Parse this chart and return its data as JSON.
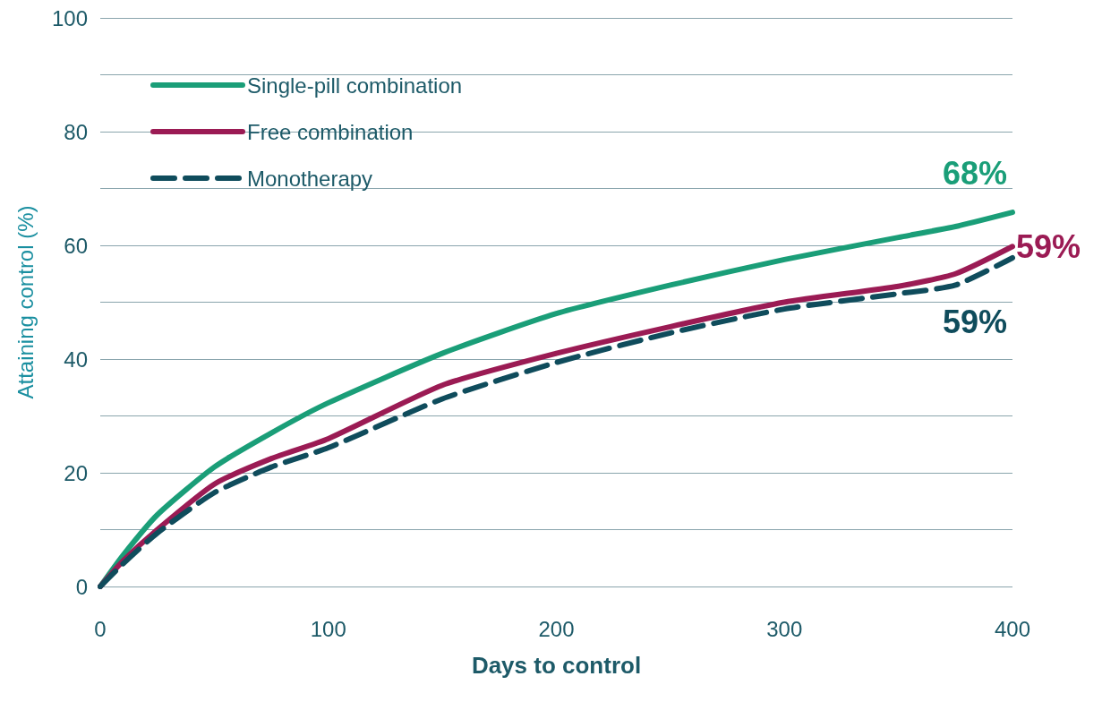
{
  "chart_data": {
    "type": "line",
    "xlabel": "Days to control",
    "ylabel": "Attaining control (%)",
    "xlim": [
      0,
      400
    ],
    "xticks": [
      0,
      100,
      200,
      300,
      400
    ],
    "ylim": [
      0,
      100
    ],
    "yticks": [
      0,
      {
        "value": 10,
        "label": null
      },
      20,
      {
        "value": 30,
        "label": null
      },
      40,
      {
        "value": 50,
        "label": null
      },
      60,
      {
        "value": 70,
        "label": null
      },
      80,
      {
        "value": 90,
        "label": null
      },
      100
    ],
    "grid": "y",
    "legend": "top left",
    "marker": "none",
    "series": [
      {
        "name": "Single-pill combination",
        "color": "#1a9e78",
        "line_style": "solid",
        "x": [
          0,
          10,
          25,
          50,
          75,
          100,
          150,
          200,
          250,
          300,
          350,
          375,
          400
        ],
        "values": [
          0,
          5.5,
          12.6,
          21,
          27,
          32.3,
          41,
          48,
          53,
          57.5,
          61.4,
          63.3,
          65.8
        ]
      },
      {
        "name": "Free combination",
        "color": "#9b1b54",
        "line_style": "solid",
        "x": [
          0,
          10,
          25,
          50,
          75,
          100,
          150,
          200,
          250,
          300,
          350,
          375,
          400
        ],
        "values": [
          0,
          4.5,
          10,
          18,
          22.5,
          26,
          35.4,
          41,
          45.7,
          50,
          52.8,
          55,
          59.8
        ]
      },
      {
        "name": "Monotherapy",
        "color": "#0f4c5c",
        "line_style": "dashed",
        "x": [
          0,
          10,
          25,
          50,
          75,
          100,
          150,
          200,
          250,
          300,
          350,
          375,
          400
        ],
        "values": [
          0,
          4,
          9.4,
          16.5,
          21,
          24.4,
          33,
          39.4,
          44.6,
          48.8,
          51.5,
          53,
          57.8
        ]
      }
    ],
    "annotations": [
      "68%",
      "59%",
      "59%"
    ]
  }
}
